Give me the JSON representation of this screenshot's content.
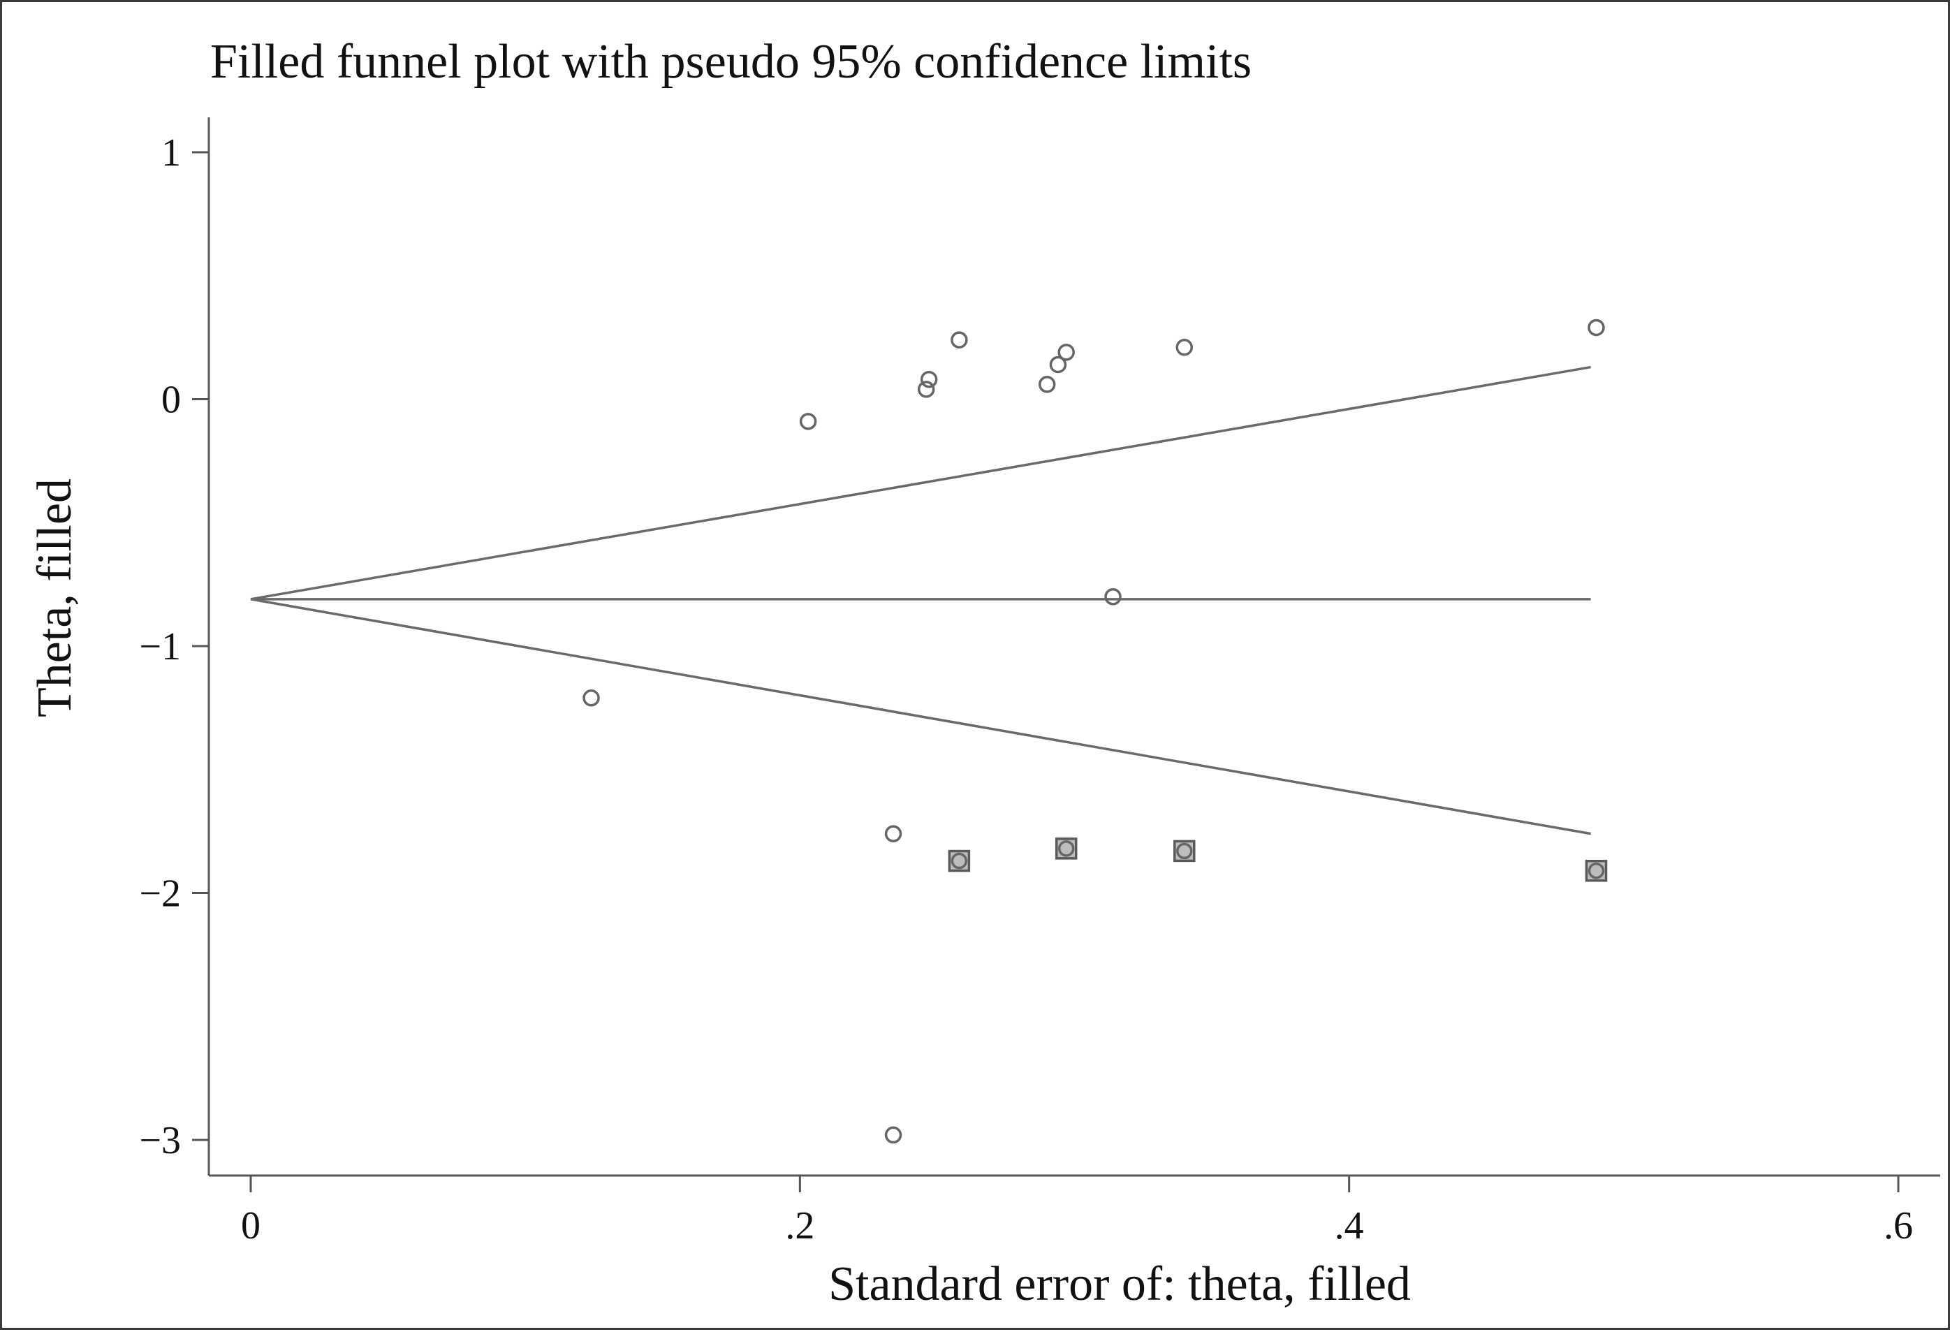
{
  "chart_data": {
    "type": "scatter",
    "title": "Filled funnel plot with pseudo 95% confidence limits",
    "xlabel": "Standard error of: theta, filled",
    "ylabel": "Theta, filled",
    "xlim": [
      0,
      0.6
    ],
    "ylim": [
      -3,
      1
    ],
    "xticks": [
      {
        "value": 0,
        "label": "0"
      },
      {
        "value": 0.2,
        "label": ".2"
      },
      {
        "value": 0.4,
        "label": ".4"
      },
      {
        "value": 0.6,
        "label": ".6"
      }
    ],
    "yticks": [
      {
        "value": 1,
        "label": "1"
      },
      {
        "value": 0,
        "label": "0"
      },
      {
        "value": -1,
        "label": "−1"
      },
      {
        "value": -2,
        "label": "−2"
      },
      {
        "value": -3,
        "label": "−3"
      }
    ],
    "grid": false,
    "legend": "none",
    "pooled_estimate": -0.81,
    "funnel_max_se": 0.488,
    "funnel_upper_end": 0.13,
    "funnel_lower_end": -1.76,
    "observed_studies": [
      {
        "x": 0.124,
        "y": -1.21
      },
      {
        "x": 0.203,
        "y": -0.09
      },
      {
        "x": 0.234,
        "y": -1.76
      },
      {
        "x": 0.234,
        "y": -2.98
      },
      {
        "x": 0.246,
        "y": 0.04
      },
      {
        "x": 0.247,
        "y": 0.08
      },
      {
        "x": 0.258,
        "y": 0.24
      },
      {
        "x": 0.29,
        "y": 0.06
      },
      {
        "x": 0.294,
        "y": 0.14
      },
      {
        "x": 0.297,
        "y": 0.19
      },
      {
        "x": 0.314,
        "y": -0.8
      },
      {
        "x": 0.34,
        "y": 0.21
      },
      {
        "x": 0.49,
        "y": 0.29
      }
    ],
    "filled_studies": [
      {
        "x": 0.258,
        "y": -1.87
      },
      {
        "x": 0.297,
        "y": -1.82
      },
      {
        "x": 0.34,
        "y": -1.83
      },
      {
        "x": 0.49,
        "y": -1.91
      }
    ]
  }
}
